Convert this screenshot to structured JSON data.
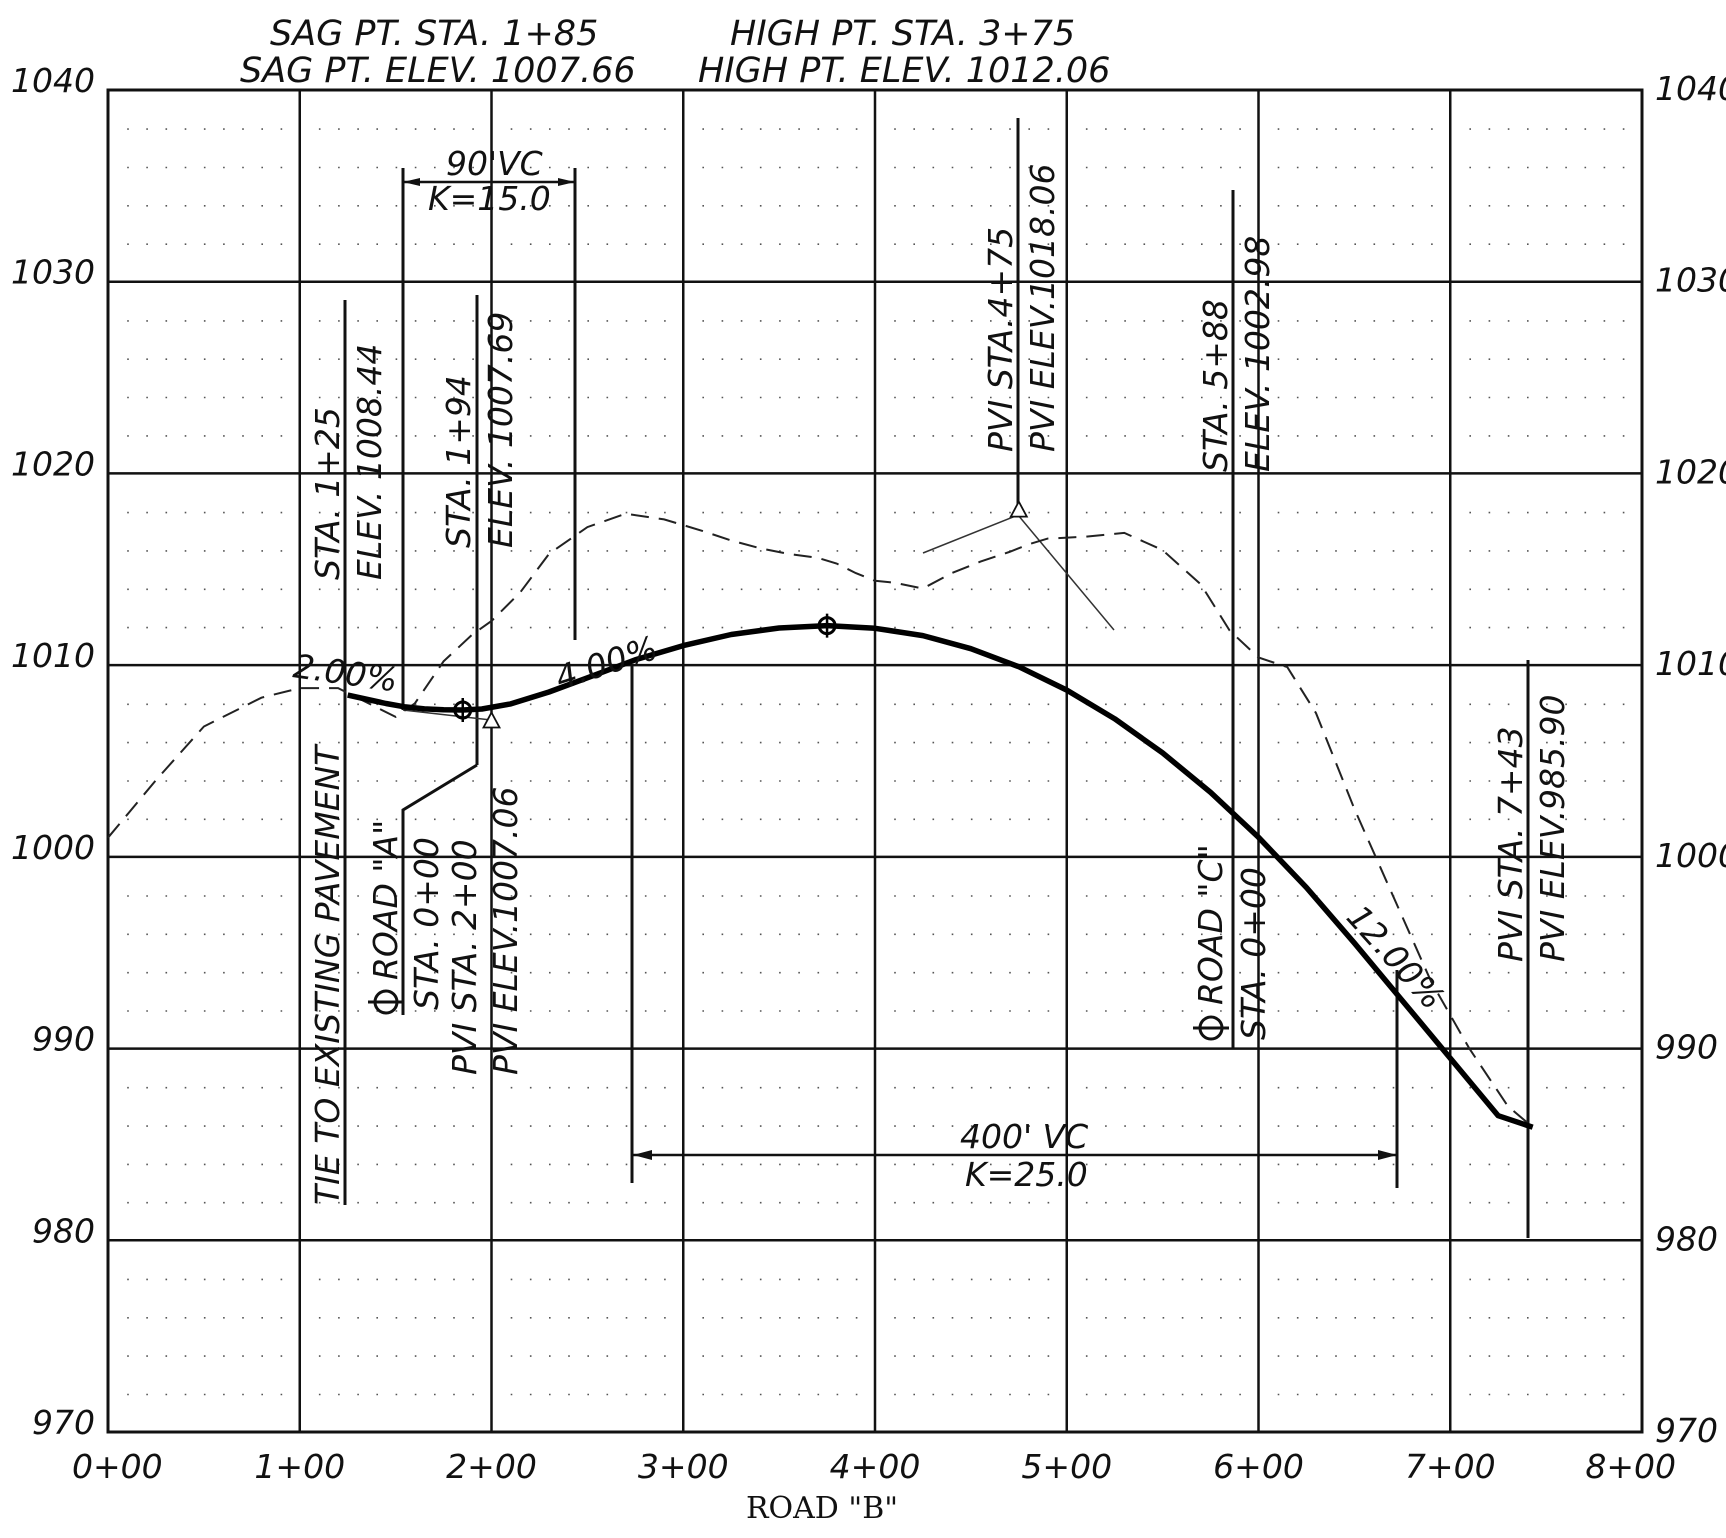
{
  "header": {
    "sag_sta": "SAG PT. STA. 1+85",
    "sag_elev": "SAG PT. ELEV. 1007.66",
    "high_sta": "HIGH PT. STA. 3+75",
    "high_elev": "HIGH PT. ELEV. 1012.06"
  },
  "axes": {
    "x_title": "ROAD \"B\"",
    "x_ticks": [
      "0+00",
      "1+00",
      "2+00",
      "3+00",
      "4+00",
      "5+00",
      "6+00",
      "7+00",
      "8+00"
    ],
    "y_ticks": [
      "1040",
      "1030",
      "1020",
      "1010",
      "1000",
      "990",
      "980",
      "970"
    ]
  },
  "annotations": {
    "vc1": "90'VC",
    "k1": "K=15.0",
    "vc2": "400' VC",
    "k2": "K=25.0",
    "g1": "2.00%",
    "g2": "4.00%",
    "g3": "12.00%",
    "sta125": "STA. 1+25",
    "elev125": "ELEV. 1008.44",
    "sta194": "STA. 1+94",
    "elev194": "ELEV. 1007.69",
    "pvi475_sta": "PVI STA.4+75",
    "pvi475_elev": "PVI ELEV.1018.06",
    "sta588": "STA. 5+88",
    "elev588": "ELEV. 1002.98",
    "tie": "TIE TO EXISTING PAVEMENT",
    "road_a": "ROAD \"A\"",
    "road_a_sta": "STA. 0+00",
    "pvi200_sta": "PVI STA. 2+00",
    "pvi200_elev": "PVI ELEV.1007.06",
    "road_c": "ROAD \"C\"",
    "road_c_sta": "STA. 0+00",
    "pvi743_sta": "PVI STA. 7+43",
    "pvi743_elev": "PVI ELEV.985.90",
    "centerline_symbol": "centerline-symbol"
  },
  "chart_data": {
    "type": "line",
    "xlabel": "ROAD \"B\"",
    "xlim": [
      0,
      800
    ],
    "ylim": [
      970,
      1040
    ],
    "grid": true,
    "series": [
      {
        "style": "dashed",
        "x": [
          0,
          25,
          50,
          80,
          100,
          120,
          140,
          150,
          160,
          175,
          190,
          200,
          215,
          230,
          250,
          270,
          290,
          310,
          325,
          340,
          355,
          370,
          380,
          390,
          400,
          410,
          425,
          440,
          455,
          470,
          480,
          490,
          510,
          530,
          550,
          570,
          585,
          600,
          615,
          630,
          650,
          670,
          690,
          710,
          730,
          743
        ],
        "y": [
          1001.0,
          1004.0,
          1006.8,
          1008.3,
          1008.8,
          1008.8,
          1007.8,
          1007.3,
          1008.0,
          1010.2,
          1011.6,
          1012.3,
          1013.8,
          1015.8,
          1017.2,
          1017.9,
          1017.6,
          1017.0,
          1016.5,
          1016.1,
          1015.8,
          1015.6,
          1015.3,
          1014.8,
          1014.4,
          1014.3,
          1014.0,
          1014.8,
          1015.4,
          1015.9,
          1016.3,
          1016.6,
          1016.7,
          1016.9,
          1016.0,
          1014.2,
          1011.8,
          1010.4,
          1009.9,
          1007.5,
          1002.5,
          998.0,
          993.5,
          990.0,
          987.0,
          985.9
        ]
      },
      {
        "style": "proposed",
        "x": [
          125,
          145,
          155,
          165,
          175,
          185,
          195,
          210,
          230,
          250,
          275,
          300,
          325,
          350,
          375,
          400,
          425,
          450,
          475,
          500,
          525,
          550,
          575,
          600,
          625,
          650,
          675,
          700,
          725,
          743
        ],
        "y": [
          1008.44,
          1008.0,
          1007.82,
          1007.72,
          1007.67,
          1007.66,
          1007.71,
          1007.98,
          1008.6,
          1009.34,
          1010.28,
          1011.02,
          1011.6,
          1011.94,
          1012.06,
          1011.92,
          1011.54,
          1010.86,
          1009.92,
          1008.7,
          1007.2,
          1005.42,
          1003.36,
          1001.02,
          998.4,
          995.5,
          992.5,
          989.5,
          986.5,
          985.9
        ]
      }
    ],
    "points": [
      {
        "x": 185,
        "y": 1007.66,
        "marker": "circle-cross"
      },
      {
        "x": 375,
        "y": 1012.06,
        "marker": "circle-cross"
      },
      {
        "x": 200,
        "y": 1007.06,
        "marker": "triangle"
      },
      {
        "x": 475,
        "y": 1018.06,
        "marker": "triangle"
      }
    ]
  }
}
